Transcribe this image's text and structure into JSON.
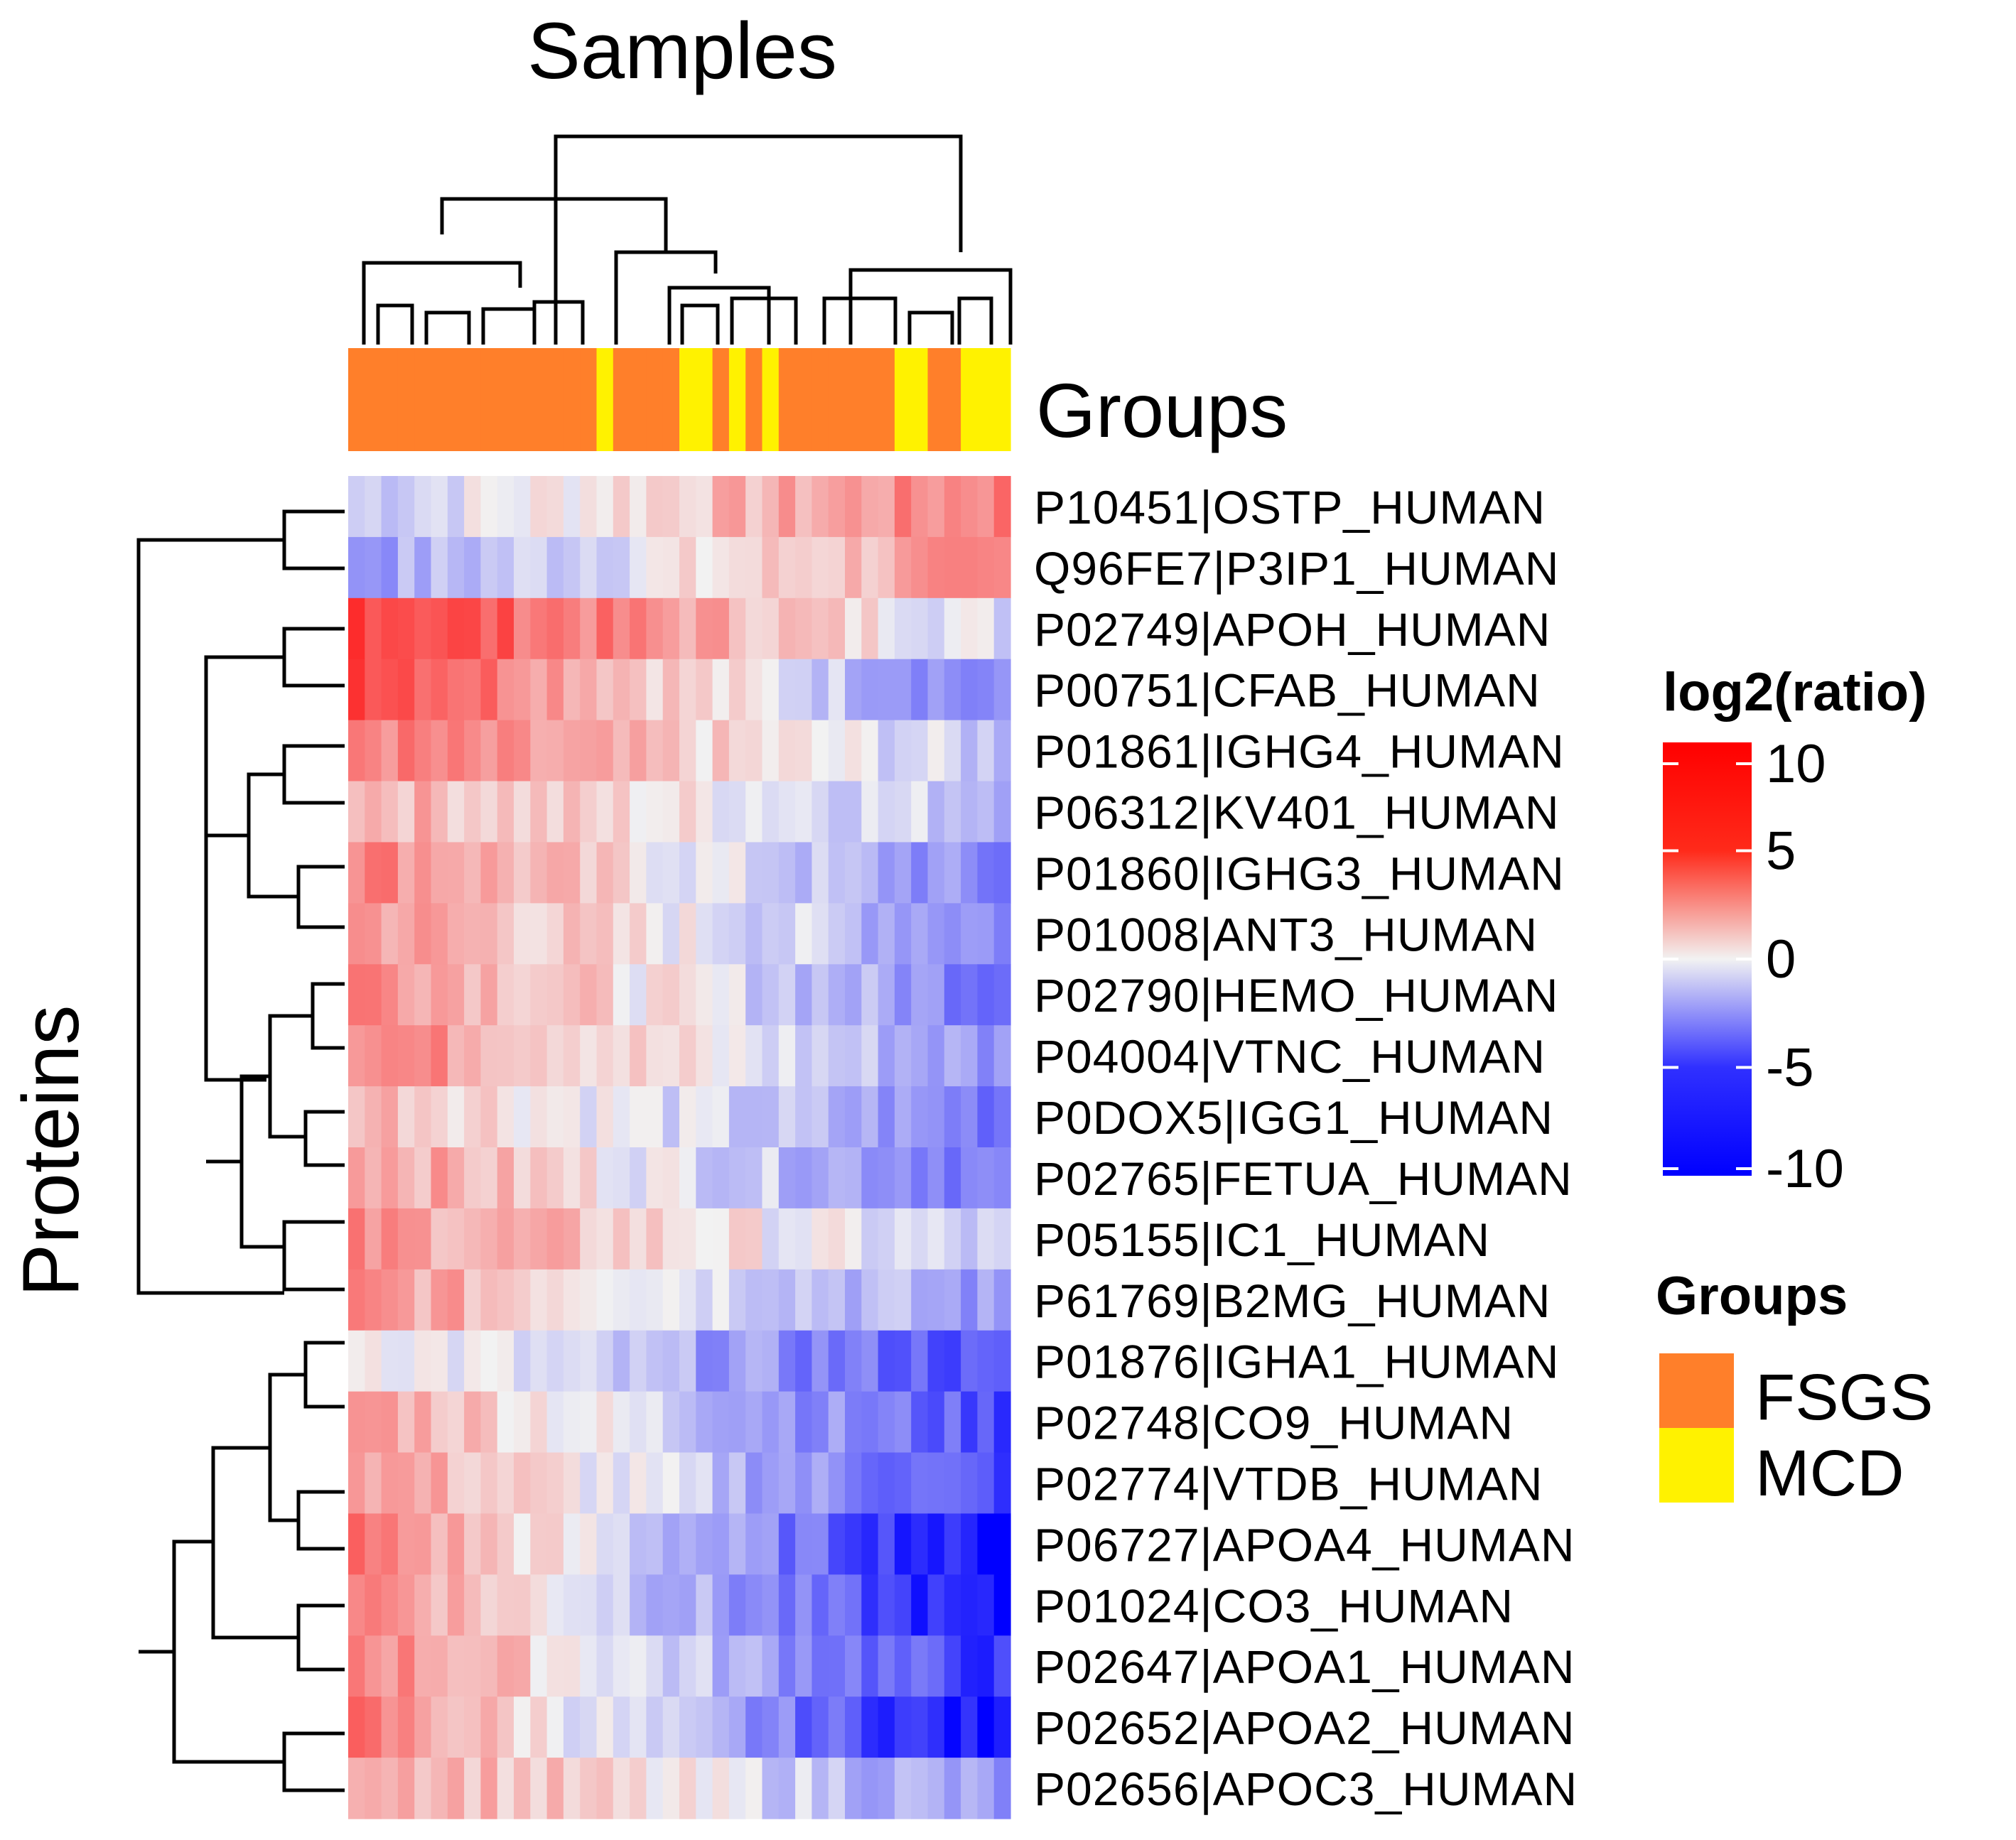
{
  "chart_data": {
    "type": "heatmap",
    "title": "Samples",
    "ylabel": "Proteins",
    "annotation_label": "Groups",
    "color_scale": {
      "title": "log2(ratio)",
      "ticks": [
        "10",
        "5",
        "0",
        "-5",
        "-10"
      ],
      "tick_values": [
        10,
        5,
        0,
        -5,
        -10
      ],
      "range": [
        -10,
        10
      ],
      "colors": {
        "low": "#0000ff",
        "mid": "#f2f2f2",
        "high": "#ff0000",
        "na": "#bebebe"
      }
    },
    "groups_legend": {
      "title": "Groups",
      "items": [
        {
          "label": "FSGS",
          "color": "#ff7f2a"
        },
        {
          "label": "MCD",
          "color": "#fff200"
        }
      ]
    },
    "sample_groups": [
      "FSGS",
      "FSGS",
      "FSGS",
      "FSGS",
      "FSGS",
      "FSGS",
      "FSGS",
      "FSGS",
      "FSGS",
      "FSGS",
      "FSGS",
      "FSGS",
      "FSGS",
      "FSGS",
      "FSGS",
      "MCD",
      "FSGS",
      "FSGS",
      "FSGS",
      "FSGS",
      "MCD",
      "MCD",
      "FSGS",
      "MCD",
      "FSGS",
      "MCD",
      "FSGS",
      "FSGS",
      "FSGS",
      "FSGS",
      "FSGS",
      "FSGS",
      "FSGS",
      "MCD",
      "MCD",
      "FSGS",
      "FSGS",
      "MCD",
      "MCD",
      "MCD"
    ],
    "proteins": [
      {
        "label": "P10451|OSTP_HUMAN",
        "start": -1.5,
        "end": 5
      },
      {
        "label": "Q96FE7|P3IP1_HUMAN",
        "start": -3.5,
        "end": 4
      },
      {
        "label": "P02749|APOH_HUMAN",
        "start": 8,
        "end": -1
      },
      {
        "label": "P00751|CFAB_HUMAN",
        "start": 8,
        "end": -5
      },
      {
        "label": "P01861|IGHG4_HUMAN",
        "start": 5,
        "end": -2
      },
      {
        "label": "P06312|KV401_HUMAN",
        "start": 3,
        "end": -2
      },
      {
        "label": "P01860|IGHG3_HUMAN",
        "start": 5,
        "end": -5
      },
      {
        "label": "P01008|ANT3_HUMAN",
        "start": 4,
        "end": -4
      },
      {
        "label": "P02790|HEMO_HUMAN",
        "start": 5,
        "end": -5
      },
      {
        "label": "P04004|VTNC_HUMAN",
        "start": 5,
        "end": -4
      },
      {
        "label": "P0DOX5|IGG1_HUMAN",
        "start": 3,
        "end": -5
      },
      {
        "label": "P02765|FETUA_HUMAN",
        "start": 4,
        "end": -5
      },
      {
        "label": "P05155|IC1_HUMAN",
        "start": 4,
        "end": -2
      },
      {
        "label": "P61769|B2MG_HUMAN",
        "start": 4,
        "end": -4
      },
      {
        "label": "P01876|IGHA1_HUMAN",
        "start": 1,
        "end": -7
      },
      {
        "label": "P02748|CO9_HUMAN",
        "start": 4,
        "end": -7
      },
      {
        "label": "P02774|VTDB_HUMAN",
        "start": 4,
        "end": -7
      },
      {
        "label": "P06727|APOA4_HUMAN",
        "start": 5,
        "end": -10
      },
      {
        "label": "P01024|CO3_HUMAN",
        "start": 5,
        "end": -10
      },
      {
        "label": "P02647|APOA1_HUMAN",
        "start": 5,
        "end": -8
      },
      {
        "label": "P02652|APOA2_HUMAN",
        "start": 5,
        "end": -10
      },
      {
        "label": "P02656|APOC3_HUMAN",
        "start": 4,
        "end": -4
      }
    ]
  }
}
